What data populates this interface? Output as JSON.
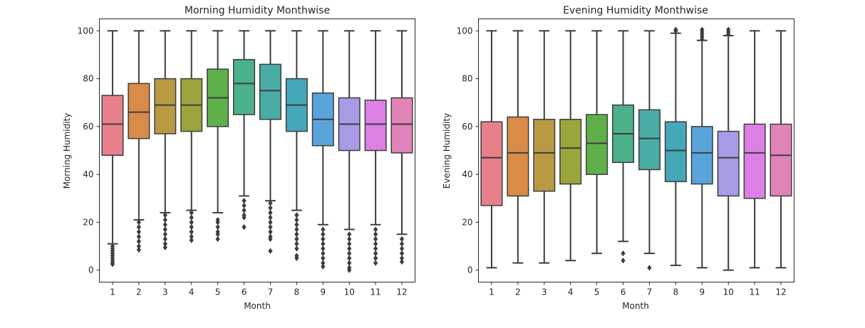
{
  "chart_data": [
    {
      "type": "box",
      "title": "Morning Humidity Monthwise",
      "xlabel": "Month",
      "ylabel": "Morning Humidity",
      "ylim": [
        -5,
        105
      ],
      "yticks": [
        0,
        20,
        40,
        60,
        80,
        100
      ],
      "categories": [
        "1",
        "2",
        "3",
        "4",
        "5",
        "6",
        "7",
        "8",
        "9",
        "10",
        "11",
        "12"
      ],
      "colors": [
        "#e8808c",
        "#d98b48",
        "#b99a43",
        "#9aa63d",
        "#5fb04a",
        "#4ab18a",
        "#4aada3",
        "#44a8b8",
        "#5aa4dc",
        "#a79be6",
        "#dc80e6",
        "#e083b8"
      ],
      "boxes": [
        {
          "whislo": 11,
          "q1": 48,
          "med": 61,
          "q3": 73,
          "whishi": 100,
          "fliers": [
            2.5,
            3,
            4,
            5,
            6,
            7,
            8,
            9,
            10
          ]
        },
        {
          "whislo": 21,
          "q1": 55,
          "med": 66,
          "q3": 78,
          "whishi": 100,
          "fliers": [
            8.5,
            10,
            12,
            14,
            16,
            18,
            20
          ]
        },
        {
          "whislo": 24,
          "q1": 57,
          "med": 69,
          "q3": 80,
          "whishi": 100,
          "fliers": [
            9.5,
            11,
            13,
            15,
            17,
            19,
            21,
            23
          ]
        },
        {
          "whislo": 25,
          "q1": 58,
          "med": 69,
          "q3": 80,
          "whishi": 100,
          "fliers": [
            12.5,
            14,
            16,
            18,
            20,
            22,
            24
          ]
        },
        {
          "whislo": 24,
          "q1": 60,
          "med": 72,
          "q3": 84,
          "whishi": 100,
          "fliers": [
            13,
            15,
            16,
            18,
            20,
            21
          ]
        },
        {
          "whislo": 31,
          "q1": 65,
          "med": 78,
          "q3": 88,
          "whishi": 100,
          "fliers": [
            18,
            22,
            23,
            25,
            27,
            29
          ]
        },
        {
          "whislo": 29,
          "q1": 63,
          "med": 75,
          "q3": 86,
          "whishi": 100,
          "fliers": [
            8,
            13,
            14,
            16,
            18,
            20,
            22,
            24,
            26,
            28
          ]
        },
        {
          "whislo": 25,
          "q1": 58,
          "med": 69,
          "q3": 80,
          "whishi": 100,
          "fliers": [
            5,
            6,
            9,
            11,
            13,
            15,
            17,
            19,
            21,
            23
          ]
        },
        {
          "whislo": 19,
          "q1": 52,
          "med": 63,
          "q3": 74,
          "whishi": 100,
          "fliers": [
            1.5,
            3,
            5,
            7,
            9,
            11,
            13,
            15,
            17
          ]
        },
        {
          "whislo": 17,
          "q1": 50,
          "med": 61,
          "q3": 72,
          "whishi": 100,
          "fliers": [
            0,
            1,
            3,
            5,
            7,
            9,
            11,
            13,
            15
          ]
        },
        {
          "whislo": 19,
          "q1": 50,
          "med": 61,
          "q3": 71,
          "whishi": 100,
          "fliers": [
            3,
            5,
            7,
            9,
            11,
            13,
            15,
            17
          ]
        },
        {
          "whislo": 15,
          "q1": 49,
          "med": 61,
          "q3": 72,
          "whishi": 100,
          "fliers": [
            3.5,
            5,
            7,
            9,
            11,
            13
          ]
        }
      ]
    },
    {
      "type": "box",
      "title": "Evening Humidity Monthwise",
      "xlabel": "Month",
      "ylabel": "Evening Humidity",
      "ylim": [
        -5,
        105
      ],
      "yticks": [
        0,
        20,
        40,
        60,
        80,
        100
      ],
      "categories": [
        "1",
        "2",
        "3",
        "4",
        "5",
        "6",
        "7",
        "8",
        "9",
        "10",
        "11",
        "12"
      ],
      "colors": [
        "#e8808c",
        "#d98b48",
        "#b99a43",
        "#9aa63d",
        "#5fb04a",
        "#4ab18a",
        "#4aada3",
        "#44a8b8",
        "#5aa4dc",
        "#a79be6",
        "#dc80e6",
        "#e083b8"
      ],
      "boxes": [
        {
          "whislo": 1,
          "q1": 27,
          "med": 47,
          "q3": 62,
          "whishi": 100,
          "fliers": []
        },
        {
          "whislo": 3,
          "q1": 31,
          "med": 49,
          "q3": 64,
          "whishi": 100,
          "fliers": []
        },
        {
          "whislo": 3,
          "q1": 33,
          "med": 49,
          "q3": 63,
          "whishi": 100,
          "fliers": []
        },
        {
          "whislo": 4,
          "q1": 36,
          "med": 51,
          "q3": 63,
          "whishi": 100,
          "fliers": []
        },
        {
          "whislo": 7,
          "q1": 40,
          "med": 53,
          "q3": 65,
          "whishi": 100,
          "fliers": []
        },
        {
          "whislo": 12,
          "q1": 45,
          "med": 57,
          "q3": 69,
          "whishi": 100,
          "fliers": [
            7,
            4
          ]
        },
        {
          "whislo": 7,
          "q1": 42,
          "med": 55,
          "q3": 67,
          "whishi": 100,
          "fliers": [
            1
          ]
        },
        {
          "whislo": 2,
          "q1": 37,
          "med": 50,
          "q3": 62,
          "whishi": 99,
          "fliers": [
            100,
            100.5
          ]
        },
        {
          "whislo": 1,
          "q1": 36,
          "med": 49,
          "q3": 60,
          "whishi": 96,
          "fliers": [
            96.5,
            97.5,
            98.5,
            99.5,
            100.5
          ]
        },
        {
          "whislo": 0,
          "q1": 31,
          "med": 47,
          "q3": 58,
          "whishi": 98,
          "fliers": [
            98.5,
            99.5,
            100.5
          ]
        },
        {
          "whislo": 1,
          "q1": 30,
          "med": 49,
          "q3": 61,
          "whishi": 100,
          "fliers": []
        },
        {
          "whislo": 1,
          "q1": 31,
          "med": 48,
          "q3": 61,
          "whishi": 100,
          "fliers": []
        }
      ]
    }
  ]
}
